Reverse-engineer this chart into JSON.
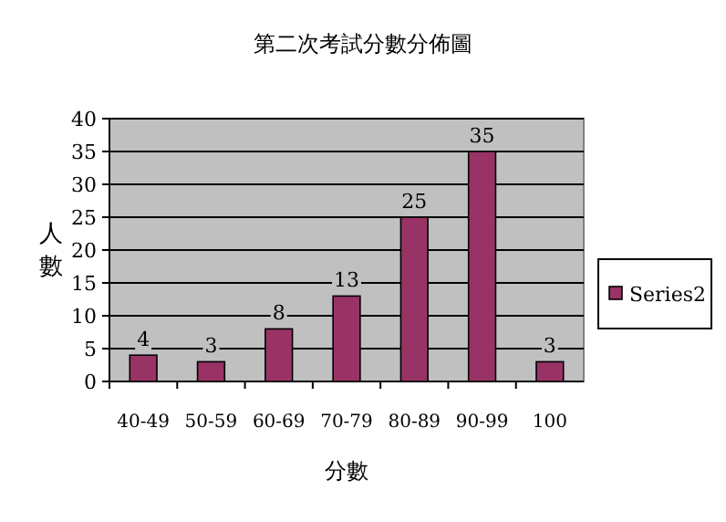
{
  "chart_data": {
    "type": "bar",
    "title": "第二次考試分數分佈圖",
    "xlabel": "分數",
    "ylabel": "人數",
    "categories": [
      "40-49",
      "50-59",
      "60-69",
      "70-79",
      "80-89",
      "90-99",
      "100"
    ],
    "series": [
      {
        "name": "Series2",
        "color": "#993366",
        "values": [
          4,
          3,
          8,
          13,
          25,
          35,
          3
        ]
      }
    ],
    "ylim": [
      0,
      40
    ],
    "yticks": [
      0,
      5,
      10,
      15,
      20,
      25,
      30,
      35,
      40
    ],
    "grid": "y",
    "legend": "right",
    "data_labels": true
  }
}
